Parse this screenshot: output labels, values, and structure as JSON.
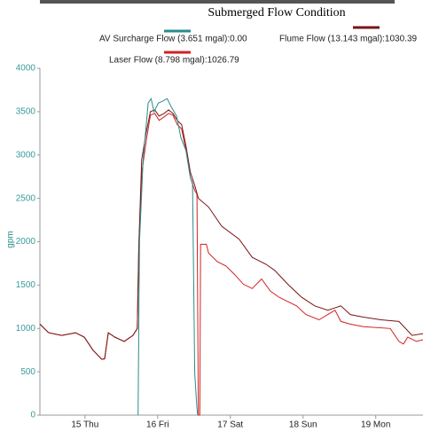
{
  "chart_data": {
    "type": "line",
    "title": "Submerged Flow Condition",
    "y_label": "gpm",
    "ylim": [
      0,
      4000
    ],
    "yticks": [
      0,
      500,
      1000,
      1500,
      2000,
      2500,
      3000,
      3500,
      4000
    ],
    "xlim": [
      14.38,
      19.65
    ],
    "xticks": [
      {
        "value": 15,
        "label": "15 Thu"
      },
      {
        "value": 16,
        "label": "16 Fri"
      },
      {
        "value": 17,
        "label": "17 Sat"
      },
      {
        "value": 18,
        "label": "18 Sun"
      },
      {
        "value": 19,
        "label": "19 Mon"
      }
    ],
    "series": [
      {
        "name": "Laser Flow (8.798 mgal):1026.79",
        "color": "#d42020",
        "x": [
          14.38,
          14.5,
          14.68,
          14.87,
          14.99,
          15.11,
          15.23,
          15.27,
          15.32,
          15.41,
          15.54,
          15.66,
          15.72,
          15.74,
          15.78,
          15.84,
          15.9,
          15.96,
          16.02,
          16.09,
          16.15,
          16.21,
          16.27,
          16.33,
          16.39,
          16.45,
          16.51,
          16.54,
          16.56,
          16.58,
          16.59,
          16.67,
          16.7,
          16.82,
          16.94,
          17.06,
          17.18,
          17.3,
          17.43,
          17.55,
          17.67,
          17.79,
          17.91,
          18.04,
          18.22,
          18.34,
          18.44,
          18.52,
          18.65,
          18.83,
          19.2,
          19.32,
          19.38,
          19.44,
          19.56,
          19.65
        ],
        "values": [
          1050,
          950,
          920,
          950,
          900,
          750,
          645,
          650,
          950,
          900,
          850,
          920,
          1000,
          1920,
          2790,
          3150,
          3460,
          3480,
          3400,
          3440,
          3480,
          3460,
          3350,
          3300,
          3050,
          2740,
          2590,
          2550,
          0,
          0,
          1970,
          1970,
          1870,
          1770,
          1720,
          1620,
          1510,
          1460,
          1570,
          1430,
          1360,
          1310,
          1260,
          1160,
          1100,
          1160,
          1210,
          1080,
          1050,
          1020,
          1000,
          850,
          820,
          900,
          850,
          870
        ]
      },
      {
        "name": "Flume Flow (13.143 mgal):1030.39",
        "color": "#7a1414",
        "x": [
          14.38,
          14.5,
          14.68,
          14.87,
          14.99,
          15.11,
          15.23,
          15.27,
          15.32,
          15.41,
          15.54,
          15.66,
          15.72,
          15.74,
          15.78,
          15.84,
          15.9,
          15.96,
          16.02,
          16.09,
          16.15,
          16.21,
          16.27,
          16.33,
          16.39,
          16.45,
          16.51,
          16.56,
          16.7,
          16.88,
          17.12,
          17.3,
          17.49,
          17.61,
          17.79,
          17.98,
          18.16,
          18.34,
          18.52,
          18.65,
          18.83,
          19.07,
          19.32,
          19.5,
          19.65
        ],
        "values": [
          1050,
          950,
          920,
          950,
          900,
          750,
          645,
          650,
          950,
          900,
          850,
          920,
          1000,
          1950,
          2950,
          3250,
          3500,
          3520,
          3450,
          3480,
          3520,
          3480,
          3400,
          3350,
          3100,
          2800,
          2650,
          2500,
          2400,
          2180,
          2030,
          1820,
          1740,
          1670,
          1510,
          1360,
          1260,
          1210,
          1260,
          1160,
          1130,
          1100,
          1080,
          920,
          940
        ]
      },
      {
        "name": "AV Surcharge Flow (3.651 mgal):0.00",
        "color": "#2a8c8c",
        "x": [
          15.73,
          15.75,
          15.8,
          15.87,
          15.91,
          15.95,
          16.01,
          16.07,
          16.13,
          16.19,
          16.26,
          16.32,
          16.39,
          16.45,
          16.48,
          16.51,
          16.54,
          16.55
        ],
        "values": [
          0,
          2000,
          2950,
          3600,
          3650,
          3500,
          3600,
          3620,
          3650,
          3550,
          3450,
          3200,
          3050,
          2740,
          2680,
          480,
          80,
          0
        ]
      }
    ]
  }
}
